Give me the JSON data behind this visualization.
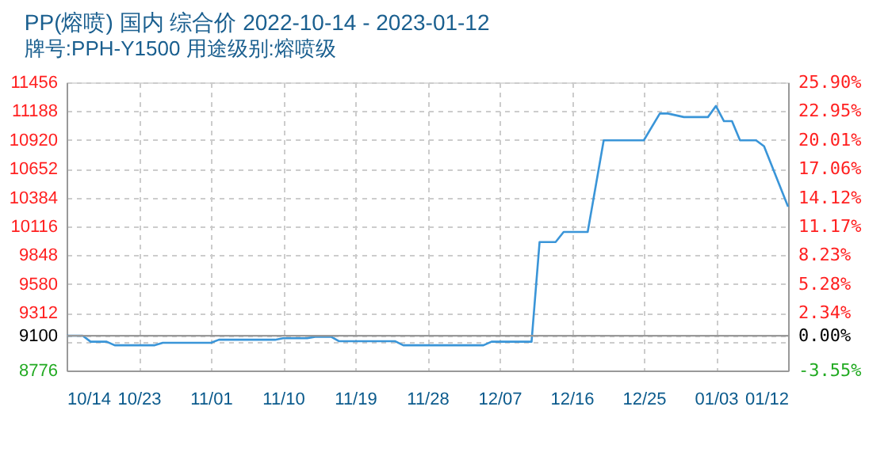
{
  "chart_data": {
    "type": "line",
    "title": "PP(熔喷) 国内 综合价 2022-10-14 - 2023-01-12",
    "subtitle": "牌号:PPH-Y1500 用途级别:熔喷级",
    "series": [
      {
        "color": "#3a95d8",
        "x": [
          "2022-10-14",
          "2022-10-16",
          "2022-10-17",
          "2022-10-19",
          "2022-10-20",
          "2022-10-25",
          "2022-10-26",
          "2022-11-01",
          "2022-11-02",
          "2022-11-09",
          "2022-11-10",
          "2022-11-13",
          "2022-11-14",
          "2022-11-16",
          "2022-11-17",
          "2022-11-24",
          "2022-11-25",
          "2022-12-05",
          "2022-12-06",
          "2022-12-11",
          "2022-12-12",
          "2022-12-14",
          "2022-12-15",
          "2022-12-18",
          "2022-12-20",
          "2022-12-25",
          "2022-12-27",
          "2022-12-28",
          "2022-12-30",
          "2023-01-02",
          "2023-01-03",
          "2023-01-04",
          "2023-01-05",
          "2023-01-06",
          "2023-01-08",
          "2023-01-09",
          "2023-01-12"
        ],
        "values": [
          9100,
          9100,
          9044,
          9044,
          9011,
          9011,
          9034,
          9034,
          9062,
          9062,
          9076,
          9076,
          9090,
          9090,
          9048,
          9048,
          9011,
          9011,
          9044,
          9044,
          9971,
          9971,
          10064,
          10064,
          10917,
          10917,
          11166,
          11166,
          11133,
          11133,
          11236,
          11095,
          11095,
          10917,
          10917,
          10861,
          10299
        ]
      }
    ],
    "xlim": [
      "2022-10-14",
      "2023-01-12"
    ],
    "xticks": [
      {
        "value": "2022-10-14",
        "label": "10/14"
      },
      {
        "value": "2022-10-23",
        "label": "10/23"
      },
      {
        "value": "2022-11-01",
        "label": "11/01"
      },
      {
        "value": "2022-11-10",
        "label": "11/10"
      },
      {
        "value": "2022-11-19",
        "label": "11/19"
      },
      {
        "value": "2022-11-28",
        "label": "11/28"
      },
      {
        "value": "2022-12-07",
        "label": "12/07"
      },
      {
        "value": "2022-12-16",
        "label": "12/16"
      },
      {
        "value": "2022-12-25",
        "label": "12/25"
      },
      {
        "value": "2023-01-03",
        "label": "01/03"
      },
      {
        "value": "2023-01-12",
        "label": "01/12"
      }
    ],
    "ylim": [
      8776,
      11456
    ],
    "yticks": [
      8776,
      {
        "value": 9044,
        "label": null
      },
      9100,
      9312,
      9580,
      9848,
      10116,
      10384,
      10652,
      10920,
      11188,
      11456
    ],
    "y2lim": [
      -3.55,
      25.9
    ],
    "y2ticks": [
      {
        "value": -3.55,
        "label": "-3.55%"
      },
      {
        "value": -0.62,
        "label": null
      },
      {
        "value": 0,
        "label": "0.00%"
      },
      {
        "value": 2.34,
        "label": "2.34%"
      },
      {
        "value": 5.28,
        "label": "5.28%"
      },
      {
        "value": 8.23,
        "label": "8.23%"
      },
      {
        "value": 11.17,
        "label": "11.17%"
      },
      {
        "value": 14.12,
        "label": "14.12%"
      },
      {
        "value": 17.06,
        "label": "17.06%"
      },
      {
        "value": 20.01,
        "label": "20.01%"
      },
      {
        "value": 22.95,
        "label": "22.95%"
      },
      {
        "value": 25.9,
        "label": "25.90%"
      }
    ],
    "ref_lines": [
      {
        "axis": "y2",
        "value": 0,
        "color": "#999999"
      }
    ],
    "grid": true,
    "marker": "none",
    "line_style": "solid"
  }
}
